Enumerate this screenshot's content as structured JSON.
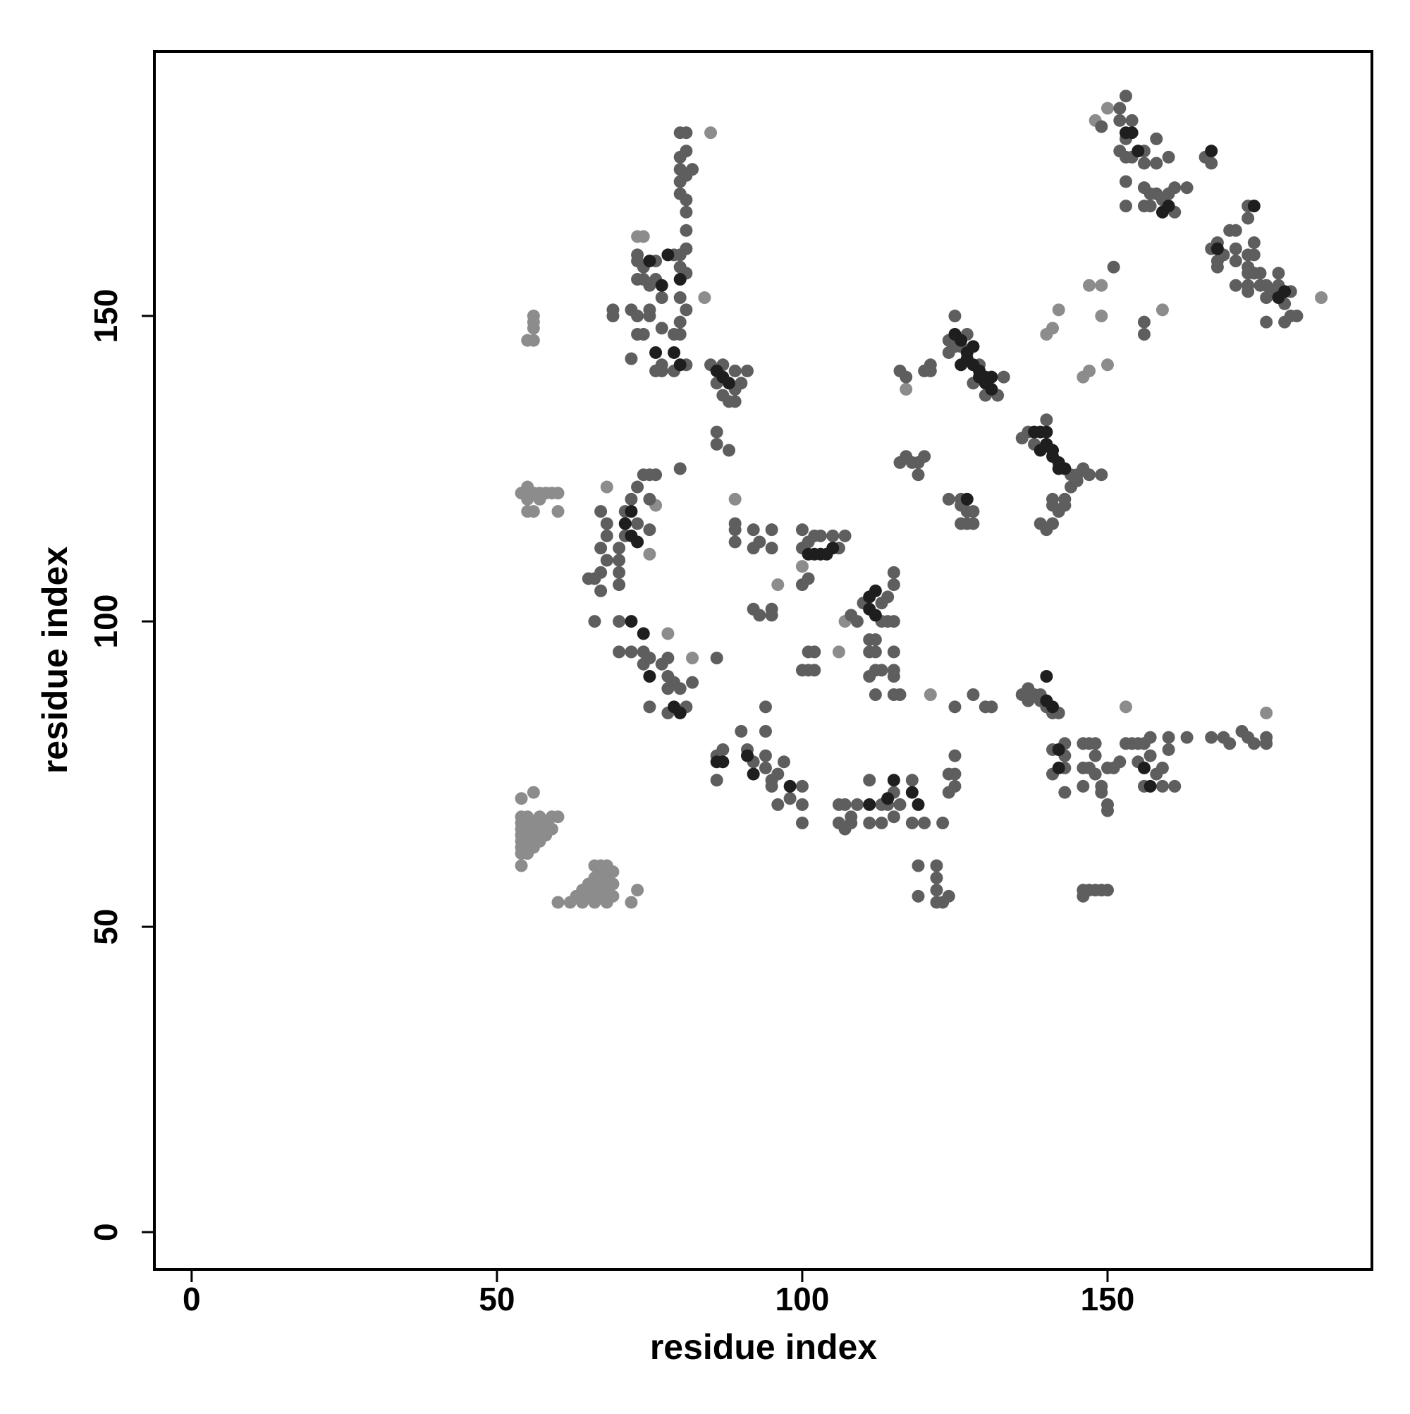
{
  "chart_data": {
    "type": "scatter",
    "x_label": "residue index",
    "y_label": "residue index",
    "xlim": [
      -6.1,
      193.3
    ],
    "ylim": [
      -6.1,
      193.3
    ],
    "xticks": [
      0,
      50,
      100,
      150
    ],
    "yticks": [
      0,
      50,
      100,
      150
    ],
    "grid": false,
    "series": [
      {
        "color": "#8c8c8c",
        "x": [
          54,
          54,
          54,
          54,
          54,
          54,
          54,
          54,
          54,
          55,
          55,
          55,
          55,
          56,
          56,
          56,
          56,
          57,
          57,
          57,
          58,
          58,
          59,
          59,
          60,
          60,
          62,
          63,
          64,
          64,
          65,
          65,
          66,
          66,
          66,
          67,
          67,
          67,
          68,
          68,
          68,
          68,
          69,
          69,
          69,
          72,
          73,
          66,
          67,
          55,
          56,
          56,
          56,
          56,
          54,
          55,
          55,
          56,
          57,
          58,
          59,
          60,
          56,
          55,
          60,
          57,
          85,
          84,
          89,
          96,
          107,
          106,
          121,
          100,
          117,
          149,
          142,
          140,
          141,
          146,
          147,
          149,
          147,
          150,
          159,
          153,
          176,
          185,
          150,
          148,
          82,
          78,
          75,
          68,
          76,
          73,
          74
        ],
        "y": [
          60,
          62,
          63,
          64,
          65,
          66,
          67,
          68,
          71,
          62,
          64,
          66,
          68,
          63,
          65,
          67,
          72,
          64,
          66,
          68,
          65,
          67,
          66,
          68,
          68,
          54,
          54,
          55,
          54,
          56,
          55,
          57,
          54,
          56,
          58,
          55,
          57,
          59,
          54,
          56,
          58,
          60,
          55,
          57,
          59,
          54,
          56,
          60,
          60,
          146,
          146,
          148,
          149,
          150,
          121,
          120,
          122,
          121,
          121,
          121,
          121,
          121,
          118,
          118,
          118,
          120,
          180,
          153,
          120,
          106,
          100,
          95,
          88,
          109,
          138,
          150,
          151,
          147,
          148,
          140,
          141,
          155,
          155,
          142,
          151,
          86,
          85,
          153,
          184,
          182,
          94,
          98,
          111,
          122,
          119,
          163,
          163
        ]
      },
      {
        "color": "#5e5e5e",
        "x": [
          67,
          68,
          68,
          67,
          68,
          67,
          66,
          65,
          67,
          66,
          70,
          70,
          70,
          70,
          71,
          71,
          72,
          73,
          74,
          75,
          76,
          73,
          75,
          75,
          80,
          70,
          70,
          72,
          74,
          75,
          74,
          77,
          78,
          78,
          79,
          78,
          80,
          78,
          81,
          75,
          82,
          73,
          73,
          74,
          74,
          73,
          76,
          76,
          75,
          79,
          80,
          81,
          80,
          81,
          80,
          81,
          80,
          79,
          80,
          81,
          79,
          77,
          76,
          77,
          75,
          75,
          77,
          77,
          74,
          73,
          73,
          69,
          69,
          72,
          72,
          81,
          81,
          81,
          80,
          80,
          81,
          80,
          82,
          80,
          81,
          80,
          81,
          85,
          89,
          87,
          89,
          88,
          86,
          87,
          91,
          89,
          90,
          86,
          86,
          88,
          89,
          89,
          89,
          92,
          93,
          92,
          95,
          95,
          93,
          92,
          95,
          95,
          86,
          86,
          87,
          90,
          91,
          92,
          94,
          94,
          94,
          94,
          95,
          95,
          96,
          96,
          97,
          98,
          100,
          100,
          100,
          86,
          100,
          100,
          101,
          106,
          102,
          103,
          107,
          105,
          100,
          101,
          101,
          102,
          100,
          101,
          102,
          110,
          113,
          113,
          114,
          115,
          115,
          114,
          115,
          112,
          111,
          111,
          112,
          112,
          113,
          111,
          115,
          115,
          115,
          116,
          115,
          112,
          108,
          109,
          106,
          106,
          107,
          107,
          108,
          108,
          109,
          111,
          111,
          113,
          113,
          114,
          115,
          115,
          116,
          118,
          118,
          120,
          123,
          124,
          125,
          125,
          125,
          124,
          119,
          119,
          122,
          122,
          122,
          123,
          124,
          122,
          146,
          147,
          148,
          149,
          150,
          146,
          121,
          121,
          120,
          116,
          117,
          117,
          116,
          118,
          119,
          119,
          120,
          124,
          125,
          126,
          127,
          129,
          132,
          133,
          128,
          130,
          125,
          124,
          126,
          126,
          127,
          127,
          128,
          128,
          124,
          126,
          136,
          137,
          138,
          144,
          145,
          146,
          147,
          149,
          144,
          145,
          140,
          139,
          140,
          141,
          141,
          142,
          143,
          141,
          143,
          151,
          156,
          156,
          136,
          137,
          137,
          138,
          139,
          139,
          140,
          141,
          142,
          141,
          143,
          143,
          143,
          141,
          143,
          146,
          147,
          148,
          146,
          146,
          147,
          148,
          148,
          149,
          149,
          150,
          150,
          150,
          151,
          152,
          153,
          154,
          155,
          155,
          156,
          156,
          157,
          157,
          158,
          159,
          159,
          160,
          160,
          161,
          163,
          130,
          131,
          128,
          125,
          167,
          169,
          170,
          172,
          173,
          174,
          176,
          176,
          149,
          152,
          153,
          152,
          153,
          154,
          152,
          153,
          154,
          153,
          153,
          156,
          156,
          156,
          156,
          157,
          157,
          158,
          158,
          158,
          159,
          160,
          161,
          161,
          160,
          163,
          166,
          167,
          173,
          170,
          171,
          168,
          167,
          168,
          168,
          169,
          171,
          171,
          173,
          173,
          174,
          174,
          174,
          175,
          173,
          171,
          173,
          175,
          176,
          176,
          177,
          178,
          179,
          180,
          180,
          181,
          179,
          176,
          173,
          178,
          173
        ],
        "y": [
          118,
          116,
          114,
          112,
          110,
          108,
          107,
          107,
          105,
          100,
          110,
          112,
          108,
          106,
          114,
          118,
          120,
          116,
          124,
          124,
          124,
          122,
          120,
          115,
          125,
          100,
          95,
          95,
          95,
          94,
          93,
          93,
          94,
          91,
          90,
          89,
          89,
          85,
          86,
          86,
          90,
          160,
          159,
          158,
          156,
          156,
          159,
          156,
          155,
          160,
          160,
          161,
          158,
          157,
          153,
          151,
          149,
          147,
          147,
          142,
          141,
          142,
          141,
          141,
          151,
          150,
          153,
          148,
          147,
          147,
          150,
          150,
          151,
          151,
          143,
          164,
          167,
          169,
          170,
          172,
          173,
          174,
          174,
          176,
          177,
          180,
          180,
          142,
          138,
          137,
          136,
          136,
          139,
          142,
          141,
          141,
          139,
          131,
          129,
          128,
          116,
          115,
          113,
          115,
          113,
          112,
          115,
          112,
          101,
          102,
          101,
          102,
          94,
          78,
          79,
          82,
          79,
          77,
          76,
          78,
          82,
          86,
          74,
          73,
          75,
          70,
          77,
          71,
          73,
          70,
          67,
          74,
          115,
          112,
          113,
          112,
          114,
          114,
          114,
          114,
          106,
          107,
          95,
          95,
          92,
          92,
          92,
          103,
          100,
          103,
          104,
          106,
          108,
          100,
          100,
          97,
          97,
          95,
          95,
          92,
          92,
          91,
          95,
          92,
          91,
          88,
          88,
          88,
          101,
          100,
          70,
          67,
          70,
          66,
          67,
          68,
          70,
          67,
          74,
          67,
          70,
          70,
          72,
          68,
          70,
          67,
          74,
          67,
          67,
          72,
          73,
          75,
          78,
          75,
          60,
          55,
          60,
          58,
          56,
          54,
          55,
          54,
          55,
          56,
          56,
          56,
          56,
          56,
          142,
          141,
          141,
          141,
          140,
          127,
          126,
          126,
          126,
          124,
          127,
          146,
          150,
          145,
          147,
          142,
          137,
          140,
          139,
          137,
          145,
          144,
          120,
          119,
          118,
          116,
          116,
          118,
          120,
          116,
          130,
          131,
          129,
          124,
          124,
          125,
          124,
          124,
          122,
          123,
          133,
          116,
          115,
          116,
          119,
          118,
          119,
          120,
          120,
          158,
          147,
          149,
          88,
          87,
          89,
          88,
          87,
          88,
          86,
          85,
          85,
          79,
          80,
          78,
          72,
          75,
          76,
          80,
          80,
          80,
          76,
          73,
          76,
          75,
          78,
          73,
          72,
          76,
          70,
          69,
          76,
          77,
          80,
          80,
          80,
          77,
          80,
          73,
          81,
          78,
          75,
          76,
          73,
          79,
          81,
          73,
          81,
          86,
          86,
          88,
          86,
          81,
          81,
          80,
          82,
          81,
          80,
          81,
          80,
          181,
          184,
          186,
          182,
          179,
          182,
          177,
          176,
          176,
          172,
          168,
          177,
          175,
          171,
          168,
          168,
          170,
          179,
          175,
          170,
          169,
          170,
          167,
          171,
          176,
          171,
          176,
          175,
          166,
          164,
          164,
          162,
          161,
          159,
          158,
          160,
          161,
          159,
          160,
          158,
          160,
          162,
          157,
          157,
          157,
          155,
          155,
          155,
          153,
          155,
          154,
          155,
          152,
          154,
          150,
          150,
          149,
          149,
          154,
          157,
          168
        ]
      },
      {
        "color": "#1e1e1e",
        "x": [
          125,
          126,
          127,
          127,
          128,
          129,
          130,
          130,
          131,
          131,
          129,
          128,
          126,
          127,
          138,
          139,
          140,
          139,
          140,
          141,
          141,
          142,
          143,
          142,
          111,
          112,
          111,
          112,
          102,
          103,
          104,
          105,
          101,
          87,
          88,
          86,
          79,
          80,
          76,
          77,
          75,
          80,
          78,
          153,
          154,
          155,
          159,
          160,
          167,
          168,
          174,
          178,
          179,
          140,
          141,
          142,
          140,
          156,
          157,
          142,
          72,
          74,
          75,
          79,
          80,
          72,
          71,
          73,
          72,
          86,
          87,
          91,
          92,
          98,
          111,
          114,
          115,
          118,
          119
        ],
        "y": [
          147,
          146,
          144,
          143,
          142,
          141,
          140,
          139,
          140,
          138,
          140,
          145,
          142,
          120,
          131,
          131,
          131,
          128,
          129,
          128,
          127,
          126,
          125,
          125,
          104,
          105,
          102,
          101,
          111,
          111,
          111,
          112,
          111,
          140,
          139,
          141,
          144,
          142,
          144,
          155,
          159,
          156,
          160,
          180,
          180,
          177,
          167,
          168,
          177,
          161,
          168,
          153,
          154,
          87,
          86,
          76,
          91,
          76,
          73,
          79,
          100,
          98,
          91,
          86,
          85,
          118,
          116,
          113,
          114,
          77,
          77,
          78,
          75,
          73,
          70,
          71,
          74,
          72,
          70
        ]
      }
    ]
  }
}
